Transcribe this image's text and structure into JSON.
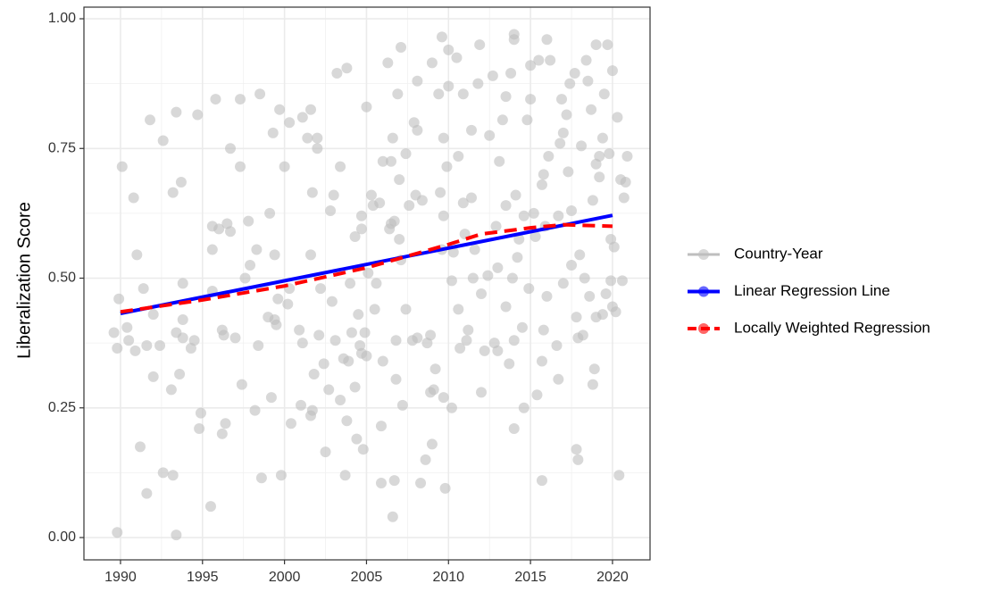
{
  "chart_data": {
    "type": "scatter",
    "y_label": "Liberalization Score",
    "xlim": [
      1987.77,
      2022.29
    ],
    "ylim": [
      -0.043,
      1.0224
    ],
    "xticks": [
      1990,
      1995,
      2000,
      2005,
      2010,
      2015,
      2020
    ],
    "yticks": [
      {
        "value": 0,
        "label": "0.00"
      },
      {
        "value": 0.25,
        "label": "0.25"
      },
      {
        "value": 0.5,
        "label": "0.50"
      },
      {
        "value": 0.75,
        "label": "0.75"
      },
      {
        "value": 1,
        "label": "1.00"
      }
    ],
    "minor_xticks": [
      1992.5,
      1997.5,
      2002.5,
      2007.5,
      2012.5,
      2017.5
    ],
    "minor_yticks": [
      0.125,
      0.375,
      0.625,
      0.875
    ],
    "grid": true,
    "legend_position": "right",
    "series": [
      {
        "name": "Country-Year",
        "type": "scatter",
        "color": "#bebebe",
        "x": [
          1989.8,
          1989.9,
          1989.8,
          1990.1,
          1989.6,
          1990.5,
          1990.4,
          1990.8,
          1990.9,
          1991,
          1991.2,
          1991.4,
          1991.6,
          1991.6,
          1991.8,
          1992,
          1992,
          1992.4,
          1992.6,
          1992.6,
          1993.1,
          1993.2,
          1993.2,
          1993.4,
          1993.4,
          1993.4,
          1993.6,
          1993.7,
          1993.8,
          1993.8,
          1993.8,
          1994.3,
          1994.5,
          1994.7,
          1994.8,
          1994.9,
          1995.5,
          1995.6,
          1995.6,
          1995.6,
          1995.8,
          1996,
          1996.2,
          1996.2,
          1996.3,
          1996.4,
          1996.5,
          1996.7,
          1996.7,
          1997,
          1997.3,
          1997.3,
          1997.4,
          1997.6,
          1997.8,
          1997.9,
          1998.2,
          1998.3,
          1998.4,
          1998.5,
          1998.6,
          1999,
          1999.1,
          1999.2,
          1999.3,
          1999.4,
          1999.4,
          1999.5,
          1999.6,
          1999.7,
          1999.8,
          2000,
          2000.2,
          2000.3,
          2000.3,
          2000.4,
          2000.9,
          2001,
          2001.1,
          2001.1,
          2001.4,
          2001.6,
          2001.6,
          2001.6,
          2001.7,
          2001.7,
          2001.8,
          2002,
          2002,
          2002.1,
          2002.2,
          2002.4,
          2002.5,
          2002.7,
          2002.8,
          2002.9,
          2003,
          2003.1,
          2003.2,
          2003.4,
          2003.4,
          2003.6,
          2003.7,
          2003.8,
          2003.8,
          2003.9,
          2004,
          2004.1,
          2004.3,
          2004.3,
          2004.4,
          2004.5,
          2004.6,
          2004.7,
          2004.7,
          2004.7,
          2004.8,
          2004.9,
          2005,
          2005,
          2005.1,
          2005.3,
          2005.4,
          2005.5,
          2005.6,
          2005.8,
          2005.9,
          2005.9,
          2006,
          2006,
          2006.3,
          2006.4,
          2006.5,
          2006.5,
          2006.6,
          2006.6,
          2006.7,
          2006.7,
          2006.8,
          2006.8,
          2006.9,
          2007,
          2007,
          2007.1,
          2007.1,
          2007.2,
          2007.4,
          2007.4,
          2007.6,
          2007.8,
          2007.9,
          2008,
          2008.1,
          2008.1,
          2008.1,
          2008.3,
          2008.4,
          2008.6,
          2008.7,
          2008.9,
          2008.9,
          2009,
          2009,
          2009.1,
          2009.2,
          2009.4,
          2009.5,
          2009.6,
          2009.6,
          2009.7,
          2009.7,
          2009.7,
          2009.8,
          2009.9,
          2010,
          2010,
          2010.2,
          2010.2,
          2010.3,
          2010.5,
          2010.6,
          2010.6,
          2010.7,
          2010.9,
          2010.9,
          2011,
          2011.1,
          2011.2,
          2011.4,
          2011.4,
          2011.5,
          2011.6,
          2011.8,
          2011.9,
          2012,
          2012,
          2012.2,
          2012.4,
          2012.5,
          2012.7,
          2012.8,
          2012.9,
          2013,
          2013,
          2013.1,
          2013.3,
          2013.5,
          2013.5,
          2013.5,
          2013.7,
          2013.8,
          2013.9,
          2014,
          2014,
          2014,
          2014,
          2014.1,
          2014.2,
          2014.3,
          2014.5,
          2014.6,
          2014.6,
          2014.8,
          2014.9,
          2015,
          2015,
          2015.2,
          2015.3,
          2015.4,
          2015.5,
          2015.7,
          2015.7,
          2015.7,
          2015.8,
          2015.8,
          2015.9,
          2016,
          2016,
          2016.1,
          2016.2,
          2016.6,
          2016.7,
          2016.7,
          2016.8,
          2016.9,
          2017,
          2017,
          2017.2,
          2017.3,
          2017.4,
          2017.5,
          2017.5,
          2017.7,
          2017.8,
          2017.8,
          2017.9,
          2017.9,
          2018,
          2018.1,
          2018.2,
          2018.3,
          2018.4,
          2018.5,
          2018.6,
          2018.7,
          2018.8,
          2018.8,
          2018.9,
          2019,
          2019,
          2019,
          2019.2,
          2019.2,
          2019.4,
          2019.4,
          2019.5,
          2019.6,
          2019.7,
          2019.8,
          2019.9,
          2019.9,
          2020,
          2020,
          2020.1,
          2020.2,
          2020.3,
          2020.4,
          2020.5,
          2020.6,
          2020.7,
          2020.8,
          2020.9
        ],
        "values": [
          0.01,
          0.46,
          0.365,
          0.715,
          0.395,
          0.38,
          0.405,
          0.655,
          0.36,
          0.545,
          0.175,
          0.48,
          0.085,
          0.37,
          0.805,
          0.43,
          0.31,
          0.37,
          0.765,
          0.125,
          0.285,
          0.12,
          0.665,
          0.82,
          0.395,
          0.005,
          0.315,
          0.685,
          0.42,
          0.385,
          0.49,
          0.365,
          0.38,
          0.815,
          0.21,
          0.24,
          0.06,
          0.6,
          0.555,
          0.475,
          0.845,
          0.595,
          0.4,
          0.2,
          0.39,
          0.22,
          0.605,
          0.75,
          0.59,
          0.385,
          0.715,
          0.845,
          0.295,
          0.5,
          0.61,
          0.525,
          0.245,
          0.555,
          0.37,
          0.855,
          0.115,
          0.425,
          0.625,
          0.27,
          0.78,
          0.545,
          0.42,
          0.41,
          0.46,
          0.825,
          0.12,
          0.715,
          0.45,
          0.8,
          0.48,
          0.22,
          0.4,
          0.255,
          0.375,
          0.81,
          0.77,
          0.825,
          0.545,
          0.235,
          0.245,
          0.665,
          0.315,
          0.77,
          0.75,
          0.39,
          0.48,
          0.335,
          0.165,
          0.285,
          0.63,
          0.455,
          0.66,
          0.38,
          0.895,
          0.265,
          0.715,
          0.345,
          0.12,
          0.225,
          0.905,
          0.34,
          0.49,
          0.395,
          0.29,
          0.58,
          0.19,
          0.43,
          0.37,
          0.355,
          0.595,
          0.62,
          0.17,
          0.395,
          0.83,
          0.35,
          0.51,
          0.66,
          0.64,
          0.44,
          0.49,
          0.645,
          0.105,
          0.215,
          0.725,
          0.34,
          0.915,
          0.595,
          0.725,
          0.605,
          0.77,
          0.04,
          0.61,
          0.11,
          0.38,
          0.305,
          0.855,
          0.69,
          0.575,
          0.945,
          0.535,
          0.255,
          0.74,
          0.44,
          0.64,
          0.38,
          0.8,
          0.66,
          0.785,
          0.88,
          0.385,
          0.105,
          0.65,
          0.15,
          0.375,
          0.39,
          0.28,
          0.915,
          0.18,
          0.285,
          0.325,
          0.855,
          0.665,
          0.555,
          0.965,
          0.27,
          0.62,
          0.77,
          0.095,
          0.715,
          0.94,
          0.87,
          0.495,
          0.25,
          0.55,
          0.925,
          0.735,
          0.44,
          0.365,
          0.645,
          0.855,
          0.585,
          0.38,
          0.4,
          0.655,
          0.785,
          0.5,
          0.555,
          0.875,
          0.95,
          0.47,
          0.28,
          0.36,
          0.505,
          0.775,
          0.89,
          0.375,
          0.6,
          0.36,
          0.52,
          0.725,
          0.805,
          0.445,
          0.64,
          0.85,
          0.335,
          0.895,
          0.5,
          0.97,
          0.96,
          0.21,
          0.38,
          0.66,
          0.54,
          0.575,
          0.405,
          0.25,
          0.62,
          0.805,
          0.48,
          0.91,
          0.845,
          0.625,
          0.58,
          0.275,
          0.92,
          0.11,
          0.34,
          0.68,
          0.7,
          0.4,
          0.6,
          0.96,
          0.465,
          0.735,
          0.92,
          0.37,
          0.62,
          0.305,
          0.76,
          0.845,
          0.49,
          0.78,
          0.815,
          0.705,
          0.875,
          0.63,
          0.525,
          0.895,
          0.425,
          0.17,
          0.15,
          0.385,
          0.545,
          0.755,
          0.39,
          0.5,
          0.92,
          0.88,
          0.465,
          0.825,
          0.295,
          0.65,
          0.325,
          0.425,
          0.72,
          0.95,
          0.695,
          0.735,
          0.77,
          0.43,
          0.855,
          0.47,
          0.95,
          0.74,
          0.495,
          0.575,
          0.9,
          0.445,
          0.56,
          0.435,
          0.81,
          0.12,
          0.69,
          0.495,
          0.655,
          0.685,
          0.735
        ]
      },
      {
        "name": "Linear Regression Line",
        "type": "line",
        "color": "#0000ff",
        "x": [
          1990,
          2020
        ],
        "values": [
          0.432,
          0.621
        ]
      },
      {
        "name": "Locally Weighted Regression",
        "type": "line",
        "color": "#ff0000",
        "dashed": true,
        "x": [
          1990,
          1995,
          2000,
          2005,
          2010,
          2012,
          2015,
          2017,
          2020
        ],
        "values": [
          0.435,
          0.458,
          0.485,
          0.52,
          0.565,
          0.585,
          0.597,
          0.603,
          0.6
        ]
      }
    ]
  }
}
